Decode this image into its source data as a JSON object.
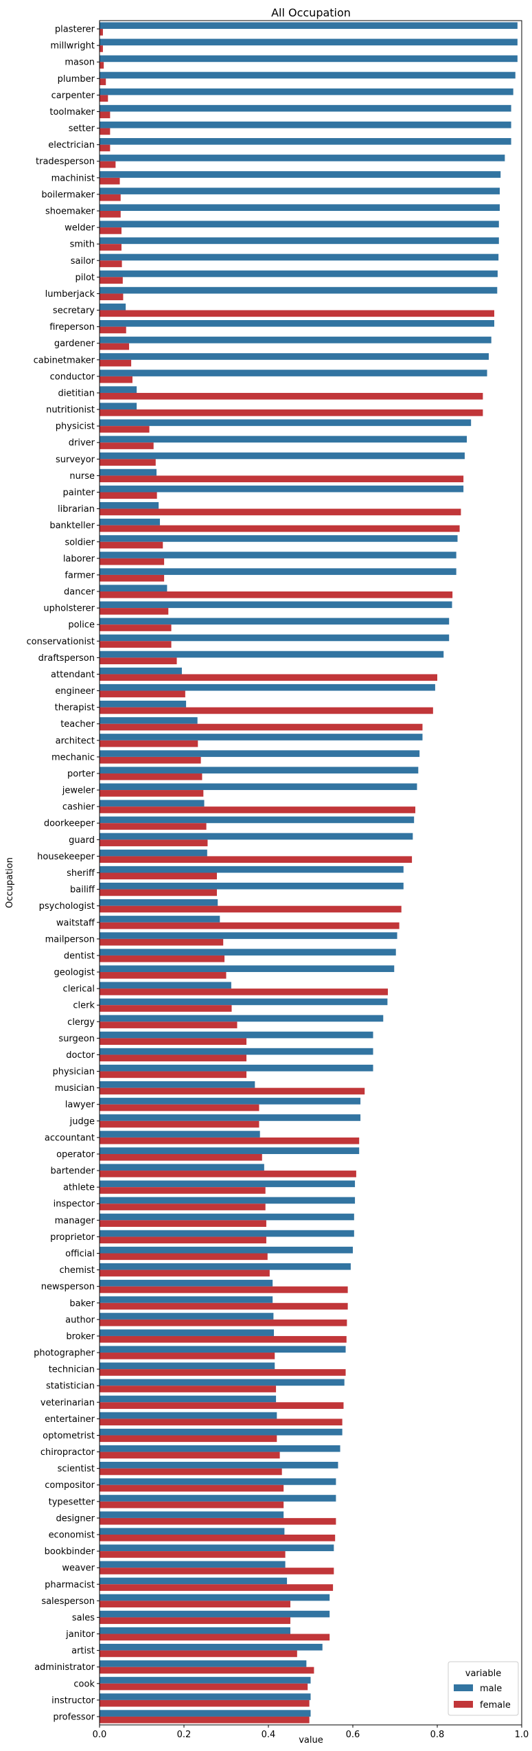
{
  "chart_data": {
    "type": "bar",
    "orientation": "horizontal",
    "title": "All Occupation",
    "xlabel": "value",
    "ylabel": "Occupation",
    "xlim": [
      0,
      1.0
    ],
    "xticks": [
      "0.0",
      "0.2",
      "0.4",
      "0.6",
      "0.8",
      "1.0"
    ],
    "grid": false,
    "legend": {
      "title": "variable",
      "placement": "lower-right"
    },
    "categories": [
      "plasterer",
      "millwright",
      "mason",
      "plumber",
      "carpenter",
      "toolmaker",
      "setter",
      "electrician",
      "tradesperson",
      "machinist",
      "boilermaker",
      "shoemaker",
      "welder",
      "smith",
      "sailor",
      "pilot",
      "lumberjack",
      "secretary",
      "fireperson",
      "gardener",
      "cabinetmaker",
      "conductor",
      "dietitian",
      "nutritionist",
      "physicist",
      "driver",
      "surveyor",
      "nurse",
      "painter",
      "librarian",
      "bankteller",
      "soldier",
      "laborer",
      "farmer",
      "dancer",
      "upholsterer",
      "police",
      "conservationist",
      "draftsperson",
      "attendant",
      "engineer",
      "therapist",
      "teacher",
      "architect",
      "mechanic",
      "porter",
      "jeweler",
      "cashier",
      "doorkeeper",
      "guard",
      "housekeeper",
      "sheriff",
      "bailiff",
      "psychologist",
      "waitstaff",
      "mailperson",
      "dentist",
      "geologist",
      "clerical",
      "clerk",
      "clergy",
      "surgeon",
      "doctor",
      "physician",
      "musician",
      "lawyer",
      "judge",
      "accountant",
      "operator",
      "bartender",
      "athlete",
      "inspector",
      "manager",
      "proprietor",
      "official",
      "chemist",
      "newsperson",
      "baker",
      "author",
      "broker",
      "photographer",
      "technician",
      "statistician",
      "veterinarian",
      "entertainer",
      "optometrist",
      "chiropractor",
      "scientist",
      "compositor",
      "typesetter",
      "designer",
      "economist",
      "bookbinder",
      "weaver",
      "pharmacist",
      "salesperson",
      "sales",
      "janitor",
      "artist",
      "administrator",
      "cook",
      "instructor",
      "professor"
    ],
    "series": [
      {
        "name": "male",
        "color": "#3274a1",
        "values": [
          0.99,
          0.99,
          0.99,
          0.985,
          0.98,
          0.975,
          0.975,
          0.975,
          0.96,
          0.95,
          0.948,
          0.948,
          0.946,
          0.946,
          0.945,
          0.943,
          0.942,
          0.062,
          0.935,
          0.928,
          0.922,
          0.918,
          0.088,
          0.088,
          0.88,
          0.87,
          0.865,
          0.135,
          0.862,
          0.14,
          0.143,
          0.848,
          0.845,
          0.845,
          0.16,
          0.835,
          0.828,
          0.828,
          0.815,
          0.195,
          0.795,
          0.205,
          0.232,
          0.765,
          0.758,
          0.755,
          0.752,
          0.248,
          0.745,
          0.742,
          0.255,
          0.72,
          0.72,
          0.28,
          0.285,
          0.705,
          0.702,
          0.698,
          0.312,
          0.682,
          0.672,
          0.648,
          0.648,
          0.648,
          0.368,
          0.618,
          0.618,
          0.38,
          0.615,
          0.39,
          0.605,
          0.605,
          0.603,
          0.603,
          0.6,
          0.595,
          0.41,
          0.41,
          0.412,
          0.413,
          0.583,
          0.415,
          0.58,
          0.418,
          0.42,
          0.575,
          0.57,
          0.565,
          0.56,
          0.56,
          0.436,
          0.438,
          0.555,
          0.44,
          0.444,
          0.545,
          0.545,
          0.452,
          0.528,
          0.49,
          0.5,
          0.5,
          0.5
        ]
      },
      {
        "name": "female",
        "color": "#c13639",
        "values": [
          0.008,
          0.008,
          0.01,
          0.015,
          0.02,
          0.025,
          0.025,
          0.025,
          0.038,
          0.048,
          0.05,
          0.05,
          0.052,
          0.052,
          0.053,
          0.055,
          0.056,
          0.935,
          0.063,
          0.07,
          0.075,
          0.078,
          0.908,
          0.908,
          0.118,
          0.128,
          0.133,
          0.862,
          0.136,
          0.856,
          0.853,
          0.15,
          0.153,
          0.153,
          0.836,
          0.163,
          0.17,
          0.17,
          0.183,
          0.8,
          0.203,
          0.79,
          0.765,
          0.233,
          0.24,
          0.243,
          0.246,
          0.748,
          0.253,
          0.256,
          0.74,
          0.278,
          0.278,
          0.715,
          0.71,
          0.293,
          0.296,
          0.3,
          0.683,
          0.313,
          0.326,
          0.348,
          0.348,
          0.348,
          0.628,
          0.378,
          0.378,
          0.615,
          0.385,
          0.608,
          0.393,
          0.393,
          0.395,
          0.395,
          0.398,
          0.403,
          0.588,
          0.588,
          0.586,
          0.585,
          0.415,
          0.583,
          0.418,
          0.578,
          0.575,
          0.42,
          0.427,
          0.432,
          0.436,
          0.436,
          0.56,
          0.558,
          0.44,
          0.555,
          0.553,
          0.452,
          0.452,
          0.545,
          0.468,
          0.508,
          0.493,
          0.497,
          0.497
        ]
      }
    ]
  }
}
